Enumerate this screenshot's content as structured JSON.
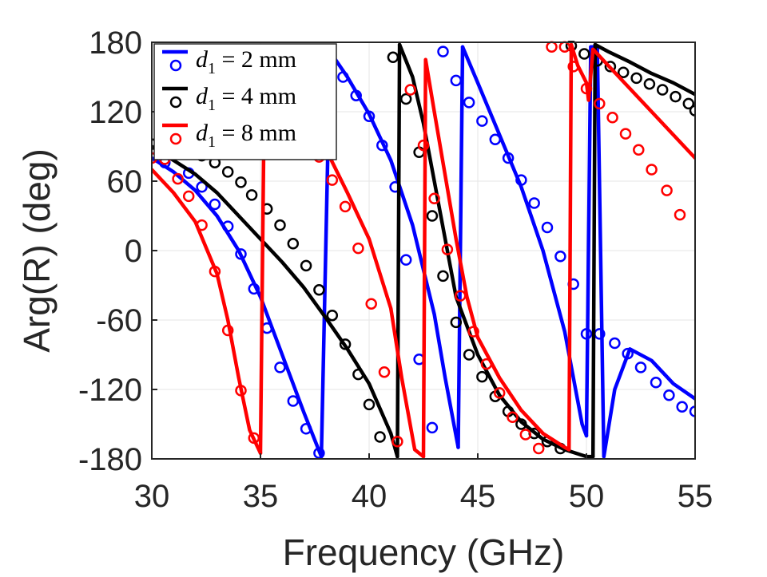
{
  "chart_data": {
    "type": "line",
    "title": "",
    "xlabel": "Frequency (GHz)",
    "ylabel": "Arg(R) (deg)",
    "xlim": [
      30,
      55
    ],
    "ylim": [
      -180,
      180
    ],
    "xticks": [
      30,
      35,
      40,
      45,
      50,
      55
    ],
    "xtick_labels": [
      "30",
      "35",
      "40",
      "45",
      "50",
      "55"
    ],
    "yticks": [
      180,
      120,
      60,
      0,
      -60,
      -120,
      -180
    ],
    "ytick_labels": [
      "180",
      "120",
      "60",
      "0",
      "-60",
      "-120",
      "-180"
    ],
    "grid": true,
    "legend_position": "top-left",
    "series": [
      {
        "name": "d1 = 2 mm",
        "legend": {
          "var": "d",
          "sub": "1",
          "rest": " = 2 mm"
        },
        "color": "#0000ff",
        "line": [
          [
            [
              30,
              80
            ],
            [
              31,
              68
            ],
            [
              32,
              52
            ],
            [
              33,
              30
            ],
            [
              34,
              0
            ],
            [
              35,
              -40
            ],
            [
              36,
              -90
            ],
            [
              37,
              -140
            ],
            [
              37.8,
              -178
            ]
          ],
          [
            [
              37.8,
              -178
            ],
            [
              38.2,
              172
            ]
          ],
          [
            [
              38.2,
              172
            ],
            [
              39,
              150
            ],
            [
              40,
              118
            ],
            [
              41,
              78
            ],
            [
              42,
              22
            ],
            [
              43,
              -55
            ],
            [
              43.5,
              -110
            ],
            [
              44.1,
              -170
            ]
          ],
          [
            [
              44.1,
              -170
            ],
            [
              44.3,
              176
            ]
          ],
          [
            [
              44.3,
              176
            ],
            [
              45,
              145
            ],
            [
              46,
              100
            ],
            [
              47,
              55
            ],
            [
              48,
              0
            ],
            [
              49,
              -70
            ],
            [
              49.8,
              -150
            ],
            [
              50,
              -160
            ]
          ],
          [
            [
              50,
              -160
            ],
            [
              50.2,
              176
            ]
          ],
          [
            [
              50.2,
              176
            ],
            [
              50.5,
              176
            ],
            [
              50.8,
              -178
            ],
            [
              51.3,
              -120
            ],
            [
              52,
              -85
            ],
            [
              53,
              -95
            ],
            [
              54,
              -115
            ],
            [
              55,
              -128
            ]
          ]
        ],
        "markers": [
          [
            30,
            80
          ],
          [
            30.6,
            76
          ],
          [
            31.7,
            67
          ],
          [
            32.3,
            55
          ],
          [
            32.9,
            40
          ],
          [
            33.5,
            21
          ],
          [
            34.1,
            -3
          ],
          [
            34.7,
            -33
          ],
          [
            35.3,
            -67
          ],
          [
            35.9,
            -101
          ],
          [
            36.5,
            -130
          ],
          [
            37.1,
            -154
          ],
          [
            37.7,
            -175
          ],
          [
            38.8,
            150
          ],
          [
            39.4,
            134
          ],
          [
            40,
            116
          ],
          [
            40.6,
            91
          ],
          [
            41.2,
            55
          ],
          [
            41.7,
            -8
          ],
          [
            42.3,
            -94
          ],
          [
            42.9,
            -153
          ],
          [
            43.4,
            172
          ],
          [
            44,
            147
          ],
          [
            44.6,
            128
          ],
          [
            45.2,
            112
          ],
          [
            45.8,
            96
          ],
          [
            46.4,
            80
          ],
          [
            47,
            61
          ],
          [
            47.6,
            41
          ],
          [
            48.2,
            20
          ],
          [
            48.8,
            -5
          ],
          [
            49.4,
            -29
          ],
          [
            50,
            -72
          ],
          [
            50.6,
            -72
          ],
          [
            51.3,
            -80
          ],
          [
            51.9,
            -89
          ],
          [
            52.5,
            -101
          ],
          [
            53.2,
            -114
          ],
          [
            53.8,
            -125
          ],
          [
            54.4,
            -135
          ],
          [
            55,
            -139
          ]
        ]
      },
      {
        "name": "d1 = 4 mm",
        "legend": {
          "var": "d",
          "sub": "1",
          "rest": " = 4 mm"
        },
        "color": "#000000",
        "line": [
          [
            [
              30,
              90
            ],
            [
              31,
              78
            ],
            [
              32,
              66
            ],
            [
              33,
              50
            ],
            [
              34,
              30
            ],
            [
              35,
              10
            ],
            [
              36,
              -10
            ],
            [
              37,
              -32
            ],
            [
              38,
              -58
            ],
            [
              39,
              -85
            ],
            [
              40,
              -115
            ],
            [
              41,
              -158
            ],
            [
              41.3,
              -178
            ]
          ],
          [
            [
              41.3,
              -178
            ],
            [
              41.4,
              178
            ]
          ],
          [
            [
              41.4,
              178
            ],
            [
              42,
              150
            ],
            [
              42.5,
              110
            ],
            [
              43,
              60
            ],
            [
              43.5,
              10
            ],
            [
              44,
              -40
            ],
            [
              45,
              -90
            ],
            [
              46,
              -125
            ],
            [
              47,
              -148
            ],
            [
              48,
              -163
            ],
            [
              49,
              -172
            ],
            [
              50,
              -178
            ],
            [
              50.3,
              -178
            ]
          ],
          [
            [
              50.3,
              -178
            ],
            [
              50.4,
              178
            ]
          ],
          [
            [
              50.4,
              178
            ],
            [
              51,
              172
            ],
            [
              52,
              163
            ],
            [
              53,
              153
            ],
            [
              54,
              145
            ],
            [
              55,
              135
            ]
          ]
        ],
        "markers": [
          [
            30,
            92
          ],
          [
            30.6,
            96
          ],
          [
            31.2,
            92
          ],
          [
            31.7,
            87
          ],
          [
            32.3,
            82
          ],
          [
            32.9,
            76
          ],
          [
            33.5,
            68
          ],
          [
            34.1,
            59
          ],
          [
            34.6,
            48
          ],
          [
            35.3,
            36
          ],
          [
            35.9,
            22
          ],
          [
            36.5,
            6
          ],
          [
            37.1,
            -13
          ],
          [
            37.7,
            -34
          ],
          [
            38.3,
            -56
          ],
          [
            38.9,
            -81
          ],
          [
            39.5,
            -107
          ],
          [
            40,
            -133
          ],
          [
            40.5,
            -161
          ],
          [
            41.1,
            167
          ],
          [
            41.7,
            131
          ],
          [
            42.3,
            85
          ],
          [
            42.9,
            30
          ],
          [
            43.4,
            -22
          ],
          [
            44,
            -62
          ],
          [
            44.6,
            -90
          ],
          [
            45.2,
            -109
          ],
          [
            45.8,
            -126
          ],
          [
            46.4,
            -139
          ],
          [
            47,
            -150
          ],
          [
            47.6,
            -158
          ],
          [
            48.2,
            -165
          ],
          [
            48.8,
            -171
          ],
          [
            49.3,
            177
          ],
          [
            49.9,
            170
          ],
          [
            50.5,
            164
          ],
          [
            51.1,
            159
          ],
          [
            51.7,
            154
          ],
          [
            52.3,
            149
          ],
          [
            52.9,
            144
          ],
          [
            53.5,
            139
          ],
          [
            54.1,
            133
          ],
          [
            54.7,
            127
          ],
          [
            55,
            121
          ]
        ]
      },
      {
        "name": "d1 = 8 mm",
        "legend": {
          "var": "d",
          "sub": "1",
          "rest": " = 8 mm"
        },
        "color": "#ff0000",
        "line": [
          [
            [
              30,
              70
            ],
            [
              31,
              50
            ],
            [
              32,
              25
            ],
            [
              33,
              -20
            ],
            [
              33.5,
              -60
            ],
            [
              34,
              -110
            ],
            [
              34.5,
              -155
            ],
            [
              35,
              -175
            ]
          ],
          [
            [
              35,
              -175
            ],
            [
              35.2,
              176
            ]
          ],
          [
            [
              35.2,
              176
            ],
            [
              36,
              145
            ],
            [
              37,
              115
            ],
            [
              38,
              88
            ],
            [
              39,
              50
            ],
            [
              40,
              10
            ],
            [
              41,
              -50
            ],
            [
              41.5,
              -110
            ],
            [
              42.1,
              -172
            ],
            [
              42.5,
              -178
            ]
          ],
          [
            [
              42.5,
              -178
            ],
            [
              42.6,
              165
            ]
          ],
          [
            [
              42.6,
              165
            ],
            [
              43,
              120
            ],
            [
              43.5,
              65
            ],
            [
              44,
              10
            ],
            [
              44.5,
              -40
            ],
            [
              45,
              -75
            ],
            [
              46,
              -110
            ],
            [
              47,
              -138
            ],
            [
              48,
              -158
            ],
            [
              49,
              -170
            ],
            [
              49.2,
              -172
            ]
          ],
          [
            [
              49.2,
              -172
            ],
            [
              49.3,
              178
            ]
          ],
          [
            [
              49.3,
              178
            ],
            [
              49.6,
              160
            ],
            [
              50,
              145
            ],
            [
              50.1,
              130
            ],
            [
              50.3,
              174
            ],
            [
              51,
              160
            ],
            [
              52,
              140
            ],
            [
              53,
              120
            ],
            [
              54,
              100
            ],
            [
              55,
              80
            ]
          ]
        ],
        "markers": [
          [
            30,
            80
          ],
          [
            30.6,
            79
          ],
          [
            31.2,
            62
          ],
          [
            31.7,
            47
          ],
          [
            32.3,
            22
          ],
          [
            32.9,
            -18
          ],
          [
            33.5,
            -69
          ],
          [
            34.1,
            -121
          ],
          [
            34.7,
            -162
          ],
          [
            35.3,
            168
          ],
          [
            35.9,
            147
          ],
          [
            36.5,
            126
          ],
          [
            37.1,
            103
          ],
          [
            37.7,
            81
          ],
          [
            38.3,
            61
          ],
          [
            38.9,
            38
          ],
          [
            39.5,
            2
          ],
          [
            40.1,
            -46
          ],
          [
            40.7,
            -105
          ],
          [
            41.3,
            -165
          ],
          [
            41.9,
            139
          ],
          [
            42.5,
            91
          ],
          [
            43,
            45
          ],
          [
            43.6,
            1
          ],
          [
            44.2,
            -39
          ],
          [
            44.8,
            -70
          ],
          [
            45.4,
            -98
          ],
          [
            46,
            -123
          ],
          [
            46.6,
            -144
          ],
          [
            47.2,
            -159
          ],
          [
            47.8,
            -171
          ],
          [
            48.4,
            176
          ],
          [
            49,
            176
          ],
          [
            49.4,
            159
          ],
          [
            50,
            140
          ],
          [
            50.6,
            127
          ],
          [
            51.2,
            115
          ],
          [
            51.8,
            101
          ],
          [
            52.4,
            87
          ],
          [
            53,
            70
          ],
          [
            53.7,
            52
          ],
          [
            54.3,
            31
          ]
        ]
      }
    ]
  }
}
